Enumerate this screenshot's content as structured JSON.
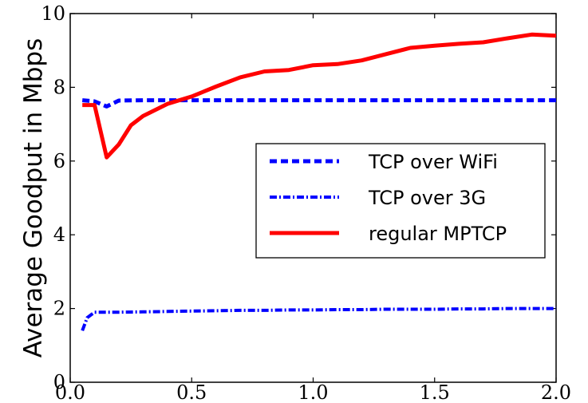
{
  "chart_data": {
    "type": "line",
    "title": "",
    "xlabel": "",
    "ylabel": "Average Goodput in Mbps",
    "xlim": [
      0.0,
      2.0
    ],
    "ylim": [
      0,
      10
    ],
    "x_ticks": [
      "0.0",
      "0.5",
      "1.0",
      "1.5",
      "2.0"
    ],
    "x_tick_values": [
      0.0,
      0.5,
      1.0,
      1.5,
      2.0
    ],
    "y_ticks": [
      "0",
      "2",
      "4",
      "6",
      "8",
      "10"
    ],
    "y_tick_values": [
      0,
      2,
      4,
      6,
      8,
      10
    ],
    "grid": false,
    "legend_position": "right",
    "series": [
      {
        "name": "TCP over WiFi",
        "color": "#0000ff",
        "style": "dashed",
        "x": [
          0.05,
          0.1,
          0.15,
          0.2,
          0.3,
          0.4,
          0.5,
          0.6,
          0.7,
          0.8,
          0.9,
          1.0,
          1.1,
          1.2,
          1.3,
          1.4,
          1.5,
          1.6,
          1.7,
          1.8,
          1.9,
          2.0
        ],
        "y": [
          7.65,
          7.62,
          7.48,
          7.64,
          7.65,
          7.65,
          7.65,
          7.65,
          7.65,
          7.65,
          7.65,
          7.65,
          7.65,
          7.65,
          7.65,
          7.65,
          7.65,
          7.65,
          7.65,
          7.65,
          7.65,
          7.65
        ]
      },
      {
        "name": "TCP over 3G",
        "color": "#0000ff",
        "style": "dashdot",
        "x": [
          0.05,
          0.07,
          0.1,
          0.2,
          0.3,
          0.4,
          0.5,
          0.6,
          0.7,
          0.8,
          0.9,
          1.0,
          1.1,
          1.2,
          1.3,
          1.4,
          1.5,
          1.6,
          1.7,
          1.8,
          1.9,
          2.0
        ],
        "y": [
          1.4,
          1.75,
          1.9,
          1.9,
          1.91,
          1.92,
          1.93,
          1.94,
          1.95,
          1.95,
          1.96,
          1.96,
          1.97,
          1.97,
          1.98,
          1.98,
          1.98,
          1.99,
          1.99,
          2.0,
          2.0,
          2.0
        ]
      },
      {
        "name": "regular MPTCP",
        "color": "#ff0000",
        "style": "solid",
        "x": [
          0.05,
          0.1,
          0.15,
          0.2,
          0.25,
          0.3,
          0.4,
          0.5,
          0.6,
          0.7,
          0.8,
          0.9,
          1.0,
          1.1,
          1.2,
          1.3,
          1.4,
          1.5,
          1.6,
          1.7,
          1.8,
          1.9,
          2.0
        ],
        "y": [
          7.52,
          7.52,
          6.1,
          6.45,
          6.97,
          7.22,
          7.55,
          7.75,
          8.02,
          8.27,
          8.43,
          8.47,
          8.6,
          8.63,
          8.73,
          8.9,
          9.07,
          9.13,
          9.18,
          9.22,
          9.33,
          9.43,
          9.4
        ]
      }
    ]
  }
}
